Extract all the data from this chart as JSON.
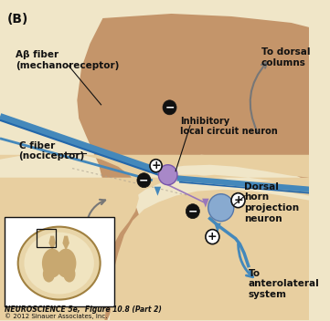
{
  "bg_color": "#f0e6c8",
  "panel_label": "(B)",
  "title_text": "NEUROSCIENCE 5e,  Figure 10.8 (Part 2)",
  "copyright_text": "© 2012 Sinauer Associates, Inc.",
  "labels": {
    "ab_fiber": "Aβ fiber\n(mechanoreceptor)",
    "c_fiber": "C fiber\n(nociceptor)",
    "inhibitory": "Inhibitory\nlocal circuit neuron",
    "dorsal_col": "To dorsal\ncolumns",
    "dorsal_horn": "Dorsal\nhorn\nprojection\nneuron",
    "anterolateral": "To\nanterolateral\nsystem"
  },
  "tissue_dark": "#c4956a",
  "tissue_mid": "#d4aa80",
  "tissue_light": "#e8cfa0",
  "ab_fiber_color": "#4488bb",
  "ab_fiber_dark": "#2266aa",
  "neuron_inh_color": "#a888c8",
  "neuron_proj_color": "#88aad0",
  "arrow_gray": "#777777",
  "arrow_blue": "#4488bb",
  "black": "#111111",
  "white": "#ffffff"
}
